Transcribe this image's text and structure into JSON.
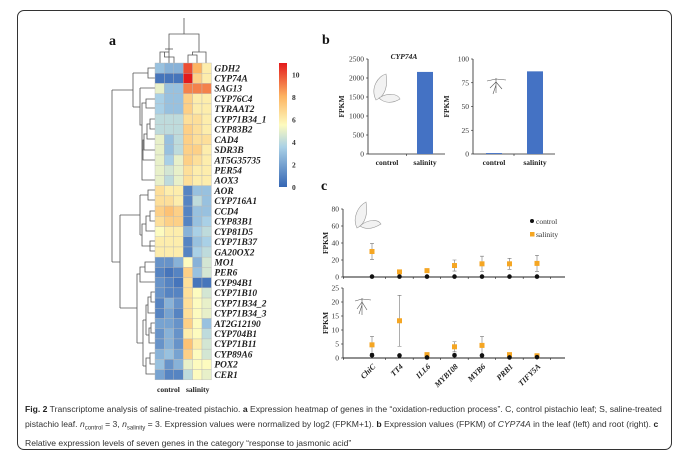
{
  "figure": {
    "panel_labels": {
      "a": "a",
      "b": "b",
      "c": "c"
    },
    "caption": {
      "fig_label": "Fig. 2",
      "text1": " Transcriptome analysis of saline-treated pistachio. ",
      "a_label": "a",
      "text2": " Expression heatmap of genes in the “oxidation-reduction process”. C, control pistachio leaf; S, saline-treated pistachio leaf. ",
      "n_symbol": "n",
      "n_control_sub": "control",
      "n_control_val": " = 3, ",
      "n_salinity_sub": "salinity",
      "n_salinity_val": " = 3. Expression values were normalized by log2 (FPKM+1). ",
      "b_label": "b",
      "text3": " Expression values (FPKM) of ",
      "gene": "CYP74A",
      "text4": " in the leaf (left) and root (right). ",
      "c_label": "c",
      "text5": " Relative expression levels of seven genes in the category “response to jasmonic acid”"
    }
  },
  "colors": {
    "low": "#3566b4",
    "mid_low": "#a9d0e6",
    "mid": "#fdfbbf",
    "mid_high": "#fdb462",
    "high": "#e31a1c",
    "bar": "#4472c4",
    "control": "#111111",
    "salinity": "#f5a623"
  },
  "chart_data": [
    {
      "type": "heatmap",
      "panel": "a",
      "column_groups": [
        "control",
        "salinity"
      ],
      "columns_per_group": 3,
      "rows": [
        "GDH2",
        "CYP74A",
        "SAG13",
        "CYP76C4",
        "TYRAAT2",
        "CYP71B34_1",
        "CYP83B2",
        "CAD4",
        "SDR3B",
        "AT5G35735",
        "PER54",
        "AOX3",
        "AOR",
        "CYP716A1",
        "CCD4",
        "CYP83B1",
        "CYP81D5",
        "CYP71B37",
        "GA20OX2",
        "MO1",
        "PER6",
        "CYP94B1",
        "CYP71B10",
        "CYP71B34_2",
        "CYP71B34_3",
        "AT2G12190",
        "CYP704B1",
        "CYP71B11",
        "CYP89A6",
        "POX2",
        "CER1"
      ],
      "values": [
        [
          3,
          2.5,
          2.5,
          10,
          8,
          6
        ],
        [
          0.5,
          0.5,
          0.5,
          11,
          7,
          6
        ],
        [
          5,
          3,
          3,
          9,
          9,
          9
        ],
        [
          3.5,
          3,
          3,
          7,
          6,
          6
        ],
        [
          3.5,
          3,
          3,
          7,
          6,
          6
        ],
        [
          4,
          4,
          4,
          6.5,
          6.5,
          6
        ],
        [
          4,
          4,
          4,
          7,
          6.5,
          6
        ],
        [
          5,
          3,
          4,
          7,
          6.5,
          6.5
        ],
        [
          5,
          3,
          4,
          7,
          7,
          6
        ],
        [
          5,
          3.5,
          5,
          7,
          6.5,
          6
        ],
        [
          5,
          4.5,
          5,
          6.5,
          6,
          6
        ],
        [
          5,
          4,
          5,
          6.5,
          6,
          6
        ],
        [
          6.5,
          6,
          6,
          1,
          3,
          3
        ],
        [
          6.5,
          6.5,
          6,
          1,
          4,
          3
        ],
        [
          7,
          7.5,
          7,
          1,
          3,
          3
        ],
        [
          6.5,
          7,
          7,
          1,
          3,
          3.5
        ],
        [
          5.5,
          6,
          6,
          2.5,
          3.5,
          4
        ],
        [
          6,
          6,
          6,
          1,
          3,
          3.5
        ],
        [
          6,
          6,
          6,
          1,
          3.5,
          4
        ],
        [
          1.5,
          1.5,
          2.5,
          5.5,
          2.5,
          4.5
        ],
        [
          1,
          0.5,
          1,
          7,
          3,
          4.5
        ],
        [
          1.5,
          1,
          0.5,
          6.5,
          0.5,
          0.5
        ],
        [
          1.5,
          1,
          1,
          6.5,
          5.5,
          4.5
        ],
        [
          1,
          2.5,
          1.5,
          6.5,
          5.5,
          5
        ],
        [
          1,
          2,
          1,
          6.5,
          5.5,
          5
        ],
        [
          2,
          2,
          1.5,
          7,
          5.5,
          3
        ],
        [
          1.5,
          2.5,
          1.5,
          6,
          5.5,
          4
        ],
        [
          1.5,
          2.5,
          1.5,
          7.5,
          6,
          4.5
        ],
        [
          2.5,
          3,
          2,
          7,
          5.5,
          4.5
        ],
        [
          3,
          1.5,
          2.5,
          5,
          5.5,
          5.5
        ],
        [
          2,
          1,
          1,
          4,
          5.5,
          5
        ]
      ],
      "colorbar": {
        "range": [
          0,
          11
        ],
        "ticks": [
          "0",
          "2",
          "4",
          "6",
          "8",
          "10"
        ]
      }
    },
    {
      "type": "bar",
      "panel": "b-left",
      "title": "CYP74A",
      "ylabel": "FPKM",
      "categories": [
        "control",
        "salinity"
      ],
      "values": [
        0,
        2160
      ],
      "ylim": [
        0,
        2500
      ],
      "yticks": [
        "0",
        "500",
        "1000",
        "1500",
        "2000",
        "2500"
      ]
    },
    {
      "type": "bar",
      "panel": "b-right",
      "title": "",
      "ylabel": "FPKM",
      "categories": [
        "control",
        "salinity"
      ],
      "values": [
        1,
        87
      ],
      "ylim": [
        0,
        100
      ],
      "yticks": [
        "0",
        "25",
        "50",
        "75",
        "100"
      ]
    },
    {
      "type": "scatter",
      "panel": "c-top",
      "ylabel": "FPKM",
      "ylim": [
        0,
        80
      ],
      "yticks": [
        "0",
        "20",
        "40",
        "60",
        "80"
      ],
      "categories": [
        "ChiC",
        "TT4",
        "ILL6",
        "MYB108",
        "MYB6",
        "PRB1",
        "TIFY5A"
      ],
      "legend": {
        "position": "top-right",
        "entries": [
          "control",
          "salinity"
        ]
      },
      "series": [
        {
          "name": "control",
          "values": [
            0.5,
            0.5,
            0.5,
            0.5,
            0.5,
            0.5,
            0.5
          ],
          "err": [
            0,
            0,
            0,
            0,
            0,
            0,
            0
          ]
        },
        {
          "name": "salinity",
          "values": [
            30,
            6,
            7.5,
            13.5,
            15.5,
            15.5,
            16
          ],
          "err": [
            9.5,
            1,
            1,
            6.5,
            9,
            6.5,
            9.5
          ]
        }
      ]
    },
    {
      "type": "scatter",
      "panel": "c-bottom",
      "ylabel": "FPKM",
      "ylim": [
        0,
        25
      ],
      "yticks": [
        "0",
        "5",
        "10",
        "15",
        "20",
        "25"
      ],
      "categories": [
        "ChiC",
        "TT4",
        "ILL6",
        "MYB108",
        "MYB6",
        "PRB1",
        "TIFY5A"
      ],
      "series": [
        {
          "name": "control",
          "values": [
            1,
            0.9,
            0.2,
            1,
            0.9,
            0.2,
            0.3
          ],
          "err": [
            0.5,
            0,
            0,
            0.5,
            0.3,
            0,
            0
          ]
        },
        {
          "name": "salinity",
          "values": [
            4.7,
            13.3,
            1.2,
            4,
            4.5,
            1.2,
            0.8
          ],
          "err": [
            3,
            9.1,
            0.3,
            1.8,
            3.2,
            0.3,
            0.7
          ]
        }
      ]
    }
  ]
}
